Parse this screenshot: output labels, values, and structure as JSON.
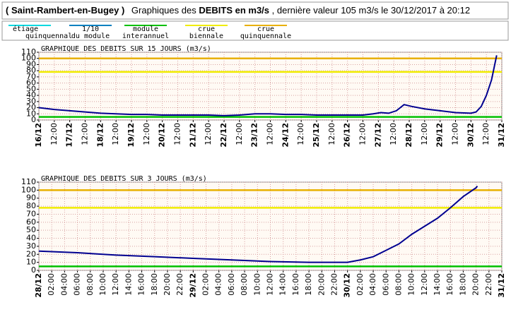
{
  "header": {
    "station": "( Saint-Rambert-en-Bugey )",
    "prefix": "Graphiques des",
    "measure": "DEBITS en m3/s",
    "suffix": ", dernière valeur 105 m3/s le 30/12/2017 à 20:12"
  },
  "legend": [
    {
      "lines": [
        "étiage",
        "quinquennal"
      ],
      "color": "#00d8e0"
    },
    {
      "lines": [
        "1/10",
        "du module"
      ],
      "color": "#0080c0"
    },
    {
      "lines": [
        "module",
        "interannuel"
      ],
      "color": "#00c000"
    },
    {
      "lines": [
        "crue",
        "biennale"
      ],
      "color": "#f0ec00"
    },
    {
      "lines": [
        "crue",
        "quinquennale"
      ],
      "color": "#e8b000"
    }
  ],
  "chart_data": [
    {
      "type": "line",
      "title": "GRAPHIQUE DES DEBITS SUR 15 JOURS (m3/s)",
      "xlim": [
        0,
        360
      ],
      "ylim": [
        0,
        110
      ],
      "yticks": [
        0,
        10,
        20,
        30,
        40,
        50,
        60,
        70,
        80,
        90,
        100,
        110
      ],
      "grid": true,
      "xticks": [
        {
          "value": 0,
          "label": "16/12"
        },
        {
          "value": 12,
          "label": "12:00"
        },
        {
          "value": 24,
          "label": "17/12"
        },
        {
          "value": 36,
          "label": "12:00"
        },
        {
          "value": 48,
          "label": "18/12"
        },
        {
          "value": 60,
          "label": "12:00"
        },
        {
          "value": 72,
          "label": "19/12"
        },
        {
          "value": 84,
          "label": "12:00"
        },
        {
          "value": 96,
          "label": "20/12"
        },
        {
          "value": 108,
          "label": "12:00"
        },
        {
          "value": 120,
          "label": "21/12"
        },
        {
          "value": 132,
          "label": "12:00"
        },
        {
          "value": 144,
          "label": "22/12"
        },
        {
          "value": 156,
          "label": "12:00"
        },
        {
          "value": 168,
          "label": "23/12"
        },
        {
          "value": 180,
          "label": "12:00"
        },
        {
          "value": 192,
          "label": "24/12"
        },
        {
          "value": 204,
          "label": "12:00"
        },
        {
          "value": 216,
          "label": "25/12"
        },
        {
          "value": 228,
          "label": "12:00"
        },
        {
          "value": 240,
          "label": "26/12"
        },
        {
          "value": 252,
          "label": "12:00"
        },
        {
          "value": 264,
          "label": "27/12"
        },
        {
          "value": 276,
          "label": "12:00"
        },
        {
          "value": 288,
          "label": "28/12"
        },
        {
          "value": 300,
          "label": "12:00"
        },
        {
          "value": 312,
          "label": "29/12"
        },
        {
          "value": 324,
          "label": "12:00"
        },
        {
          "value": 336,
          "label": "30/12"
        },
        {
          "value": 348,
          "label": "12:00"
        },
        {
          "value": 360,
          "label": "31/12"
        }
      ],
      "thresholds": [
        {
          "value": 5,
          "color": "#00c000"
        },
        {
          "value": 78,
          "color": "#f0ec00"
        },
        {
          "value": 100,
          "color": "#e8b000"
        }
      ],
      "series": [
        {
          "color": "#000090",
          "x": [
            0,
            12,
            24,
            36,
            48,
            60,
            72,
            84,
            96,
            108,
            120,
            132,
            144,
            156,
            168,
            180,
            192,
            204,
            216,
            228,
            240,
            252,
            260,
            266,
            272,
            278,
            284,
            290,
            300,
            312,
            324,
            336,
            340,
            344,
            348,
            352,
            356
          ],
          "values": [
            20,
            17,
            15,
            13,
            11,
            10,
            9,
            9,
            8,
            8,
            8,
            8,
            7,
            8,
            10,
            10,
            9,
            9,
            8,
            8,
            8,
            8,
            10,
            12,
            11,
            15,
            25,
            22,
            18,
            15,
            12,
            11,
            13,
            22,
            40,
            65,
            105
          ]
        }
      ]
    },
    {
      "type": "line",
      "title": "GRAPHIQUE DES DEBITS SUR 3 JOURS (m3/s)",
      "xlim": [
        0,
        72
      ],
      "ylim": [
        0,
        110
      ],
      "yticks": [
        0,
        10,
        20,
        30,
        40,
        50,
        60,
        70,
        80,
        90,
        100,
        110
      ],
      "grid": true,
      "xticks": [
        {
          "value": 0,
          "label": "28/12"
        },
        {
          "value": 2,
          "label": "02:00"
        },
        {
          "value": 4,
          "label": "04:00"
        },
        {
          "value": 6,
          "label": "06:00"
        },
        {
          "value": 8,
          "label": "08:00"
        },
        {
          "value": 10,
          "label": "10:00"
        },
        {
          "value": 12,
          "label": "12:00"
        },
        {
          "value": 14,
          "label": "14:00"
        },
        {
          "value": 16,
          "label": "16:00"
        },
        {
          "value": 18,
          "label": "18:00"
        },
        {
          "value": 20,
          "label": "20:00"
        },
        {
          "value": 22,
          "label": "22:00"
        },
        {
          "value": 24,
          "label": "29/12"
        },
        {
          "value": 26,
          "label": "02:00"
        },
        {
          "value": 28,
          "label": "04:00"
        },
        {
          "value": 30,
          "label": "06:00"
        },
        {
          "value": 32,
          "label": "08:00"
        },
        {
          "value": 34,
          "label": "10:00"
        },
        {
          "value": 36,
          "label": "12:00"
        },
        {
          "value": 38,
          "label": "14:00"
        },
        {
          "value": 40,
          "label": "16:00"
        },
        {
          "value": 42,
          "label": "18:00"
        },
        {
          "value": 44,
          "label": "20:00"
        },
        {
          "value": 46,
          "label": "22:00"
        },
        {
          "value": 48,
          "label": "30/12"
        },
        {
          "value": 50,
          "label": "02:00"
        },
        {
          "value": 52,
          "label": "04:00"
        },
        {
          "value": 54,
          "label": "06:00"
        },
        {
          "value": 56,
          "label": "08:00"
        },
        {
          "value": 58,
          "label": "10:00"
        },
        {
          "value": 60,
          "label": "12:00"
        },
        {
          "value": 62,
          "label": "14:00"
        },
        {
          "value": 64,
          "label": "16:00"
        },
        {
          "value": 66,
          "label": "18:00"
        },
        {
          "value": 68,
          "label": "20:00"
        },
        {
          "value": 70,
          "label": "22:00"
        },
        {
          "value": 72,
          "label": "31/12"
        }
      ],
      "thresholds": [
        {
          "value": 5,
          "color": "#00c000"
        },
        {
          "value": 78,
          "color": "#f0ec00"
        },
        {
          "value": 100,
          "color": "#e8b000"
        }
      ],
      "series": [
        {
          "color": "#000090",
          "x": [
            0,
            6,
            12,
            18,
            24,
            30,
            36,
            42,
            48,
            50,
            52,
            54,
            56,
            58,
            60,
            62,
            64,
            66,
            68,
            68.2
          ],
          "values": [
            24,
            22,
            19,
            17,
            15,
            13,
            11,
            10,
            10,
            13,
            17,
            25,
            33,
            45,
            55,
            65,
            78,
            92,
            103,
            105
          ]
        }
      ]
    }
  ]
}
